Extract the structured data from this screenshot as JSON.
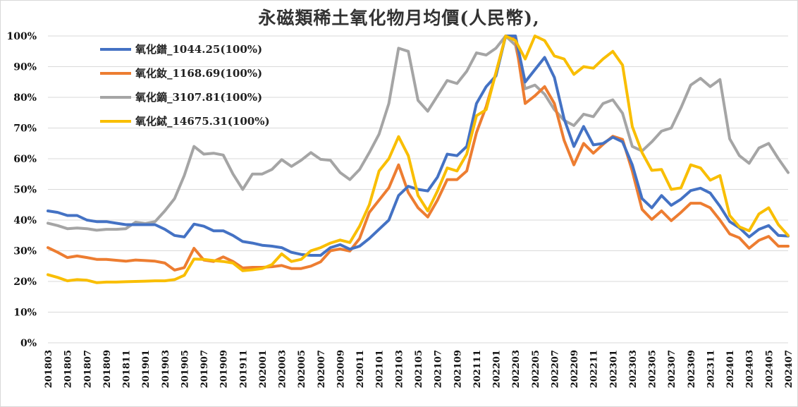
{
  "chart_data": {
    "type": "line",
    "title": "永磁類稀土氧化物月均價(人民幣),",
    "xlabel": "",
    "ylabel": "",
    "ylim": [
      0,
      100
    ],
    "yticks": [
      "0%",
      "10%",
      "20%",
      "30%",
      "40%",
      "50%",
      "60%",
      "70%",
      "80%",
      "90%",
      "100%"
    ],
    "x_tick_labels": [
      "201803",
      "201805",
      "201807",
      "201809",
      "201811",
      "201901",
      "201903",
      "201905",
      "201907",
      "201909",
      "201911",
      "202001",
      "202003",
      "202005",
      "202007",
      "202009",
      "202011",
      "202101",
      "202103",
      "202105",
      "202107",
      "202109",
      "202111",
      "202201",
      "202203",
      "202205",
      "202207",
      "202209",
      "202211",
      "202301",
      "202303",
      "202305",
      "202307",
      "202309",
      "202311",
      "202401",
      "202403",
      "202405",
      "202407"
    ],
    "legend_position": "top-left",
    "grid": "horizontal",
    "x": [
      "201803",
      "201804",
      "201805",
      "201806",
      "201807",
      "201808",
      "201809",
      "201810",
      "201811",
      "201812",
      "201901",
      "201902",
      "201903",
      "201904",
      "201905",
      "201906",
      "201907",
      "201908",
      "201909",
      "201910",
      "201911",
      "201912",
      "202001",
      "202002",
      "202003",
      "202004",
      "202005",
      "202006",
      "202007",
      "202008",
      "202009",
      "202010",
      "202011",
      "202012",
      "202101",
      "202102",
      "202103",
      "202104",
      "202105",
      "202106",
      "202107",
      "202108",
      "202109",
      "202110",
      "202111",
      "202112",
      "202201",
      "202202",
      "202203",
      "202204",
      "202205",
      "202206",
      "202207",
      "202208",
      "202209",
      "202210",
      "202211",
      "202212",
      "202301",
      "202302",
      "202303",
      "202304",
      "202305",
      "202306",
      "202307",
      "202308",
      "202309",
      "202310",
      "202311",
      "202312",
      "202401",
      "202402",
      "202403",
      "202404",
      "202405",
      "202406",
      "202407"
    ],
    "series": [
      {
        "name": "氧化鐠_1044.25(100%)",
        "color": "#4472C4",
        "values": [
          43,
          42.5,
          41.5,
          41.5,
          40,
          39.5,
          39.5,
          39,
          38.5,
          38.5,
          38.5,
          38.5,
          37,
          35,
          34.5,
          38.7,
          38,
          36.5,
          36.5,
          35,
          33,
          32.5,
          31.8,
          31.5,
          31,
          29.5,
          28.8,
          28.5,
          28.5,
          31,
          32,
          30.5,
          31.5,
          34,
          37,
          40,
          48,
          51,
          50,
          49.5,
          54,
          61.5,
          61,
          64,
          78,
          83.5,
          87,
          100,
          100,
          85,
          89,
          93,
          86.5,
          73,
          64,
          70.5,
          64.5,
          65,
          67,
          65.5,
          58,
          47,
          44,
          48,
          44.8,
          46.8,
          49.6,
          50.4,
          48.8,
          44.5,
          39.5,
          37.5,
          34.5,
          37,
          38.2,
          35,
          34.8
        ]
      },
      {
        "name": "氧化釹_1168.69(100%)",
        "color": "#ED7D31",
        "values": [
          31,
          29.5,
          27.8,
          28.3,
          27.8,
          27.2,
          27.2,
          26.9,
          26.6,
          27,
          26.8,
          26.6,
          26,
          23.7,
          24.5,
          30.8,
          27,
          26.5,
          28,
          26.5,
          24.4,
          24.6,
          24.6,
          24.8,
          25.2,
          24.2,
          24.2,
          25,
          26.4,
          30,
          30.6,
          29.9,
          34,
          42.5,
          46.5,
          50.5,
          58,
          49,
          44,
          41,
          46.5,
          53.2,
          53.2,
          56,
          68.5,
          77,
          88,
          100,
          99,
          78,
          80.5,
          83.5,
          78,
          66,
          58,
          65,
          61.8,
          64.7,
          67.3,
          66.3,
          56,
          43.5,
          40.2,
          43,
          39.8,
          42.5,
          45.5,
          45.5,
          44,
          40,
          35.5,
          34.2,
          30.8,
          33.4,
          34.7,
          31.5,
          31.5
        ]
      },
      {
        "name": "氧化鏑_3107.81(100%)",
        "color": "#A5A5A5",
        "values": [
          39,
          38.2,
          37.2,
          37.4,
          37.2,
          36.7,
          37,
          37,
          37.2,
          39.3,
          38.9,
          39.5,
          43,
          47,
          54.5,
          64,
          61.5,
          61.8,
          61.2,
          55,
          50,
          55,
          55,
          56.5,
          59.7,
          57.5,
          59.5,
          62,
          59.8,
          59.5,
          55.5,
          53.2,
          56.5,
          62,
          68,
          78,
          96,
          95,
          79,
          75.5,
          80.5,
          85.5,
          84.5,
          88.5,
          94.5,
          93.8,
          96,
          100,
          97,
          82.8,
          84,
          81,
          76,
          72.5,
          70.8,
          74.5,
          73.7,
          78,
          79.2,
          74.8,
          64,
          62.5,
          65.5,
          69,
          70,
          76.6,
          84,
          86.2,
          83.5,
          85.8,
          66.5,
          61,
          58.5,
          63.5,
          65,
          60,
          55.5
        ]
      },
      {
        "name": "氧化鋱_14675.31(100%)",
        "color": "#F9BE00",
        "values": [
          22.2,
          21.3,
          20.2,
          20.6,
          20.4,
          19.6,
          19.8,
          19.8,
          19.9,
          20,
          20.1,
          20.2,
          20.2,
          20.6,
          22,
          27.3,
          27.2,
          26.8,
          26.5,
          26,
          23.5,
          23.8,
          24.2,
          25.5,
          29,
          26.5,
          27.2,
          30,
          31,
          32.5,
          33.5,
          32.7,
          38,
          45,
          56,
          60,
          67.2,
          61,
          48,
          43,
          49.5,
          57,
          56,
          61.5,
          74,
          76,
          88,
          100,
          98.5,
          92.5,
          100,
          98.5,
          93.5,
          92.5,
          87.5,
          90,
          89.5,
          92.5,
          95,
          90.5,
          70.5,
          62,
          56.2,
          56.5,
          50,
          50.5,
          58,
          57,
          53,
          54.5,
          41.5,
          37.8,
          36.5,
          42,
          44,
          38.5,
          35
        ]
      }
    ]
  }
}
